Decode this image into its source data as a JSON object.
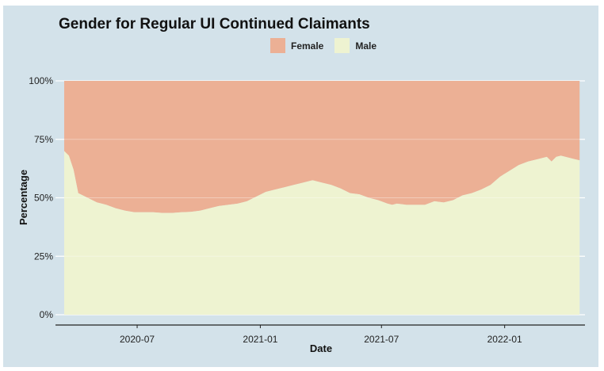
{
  "chart_data": {
    "type": "area",
    "stacked": true,
    "title": "Gender for Regular UI Continued Claimants",
    "xlabel": "Date",
    "ylabel": "Percentage",
    "x_tick_labels": [
      "2020-07",
      "2021-01",
      "2021-07",
      "2022-01"
    ],
    "y_tick_labels": [
      "0%",
      "25%",
      "50%",
      "75%",
      "100%"
    ],
    "ylim": [
      0,
      100
    ],
    "xlim": [
      "2020-03-01",
      "2022-05-01"
    ],
    "legend_position": "top",
    "grid": true,
    "x": [
      "2020-03-14",
      "2020-03-21",
      "2020-03-28",
      "2020-04-04",
      "2020-04-18",
      "2020-05-02",
      "2020-05-16",
      "2020-05-30",
      "2020-06-13",
      "2020-06-27",
      "2020-07-11",
      "2020-07-25",
      "2020-08-08",
      "2020-08-22",
      "2020-09-05",
      "2020-09-19",
      "2020-10-03",
      "2020-10-17",
      "2020-10-31",
      "2020-11-14",
      "2020-11-28",
      "2020-12-12",
      "2020-12-26",
      "2021-01-09",
      "2021-01-23",
      "2021-02-06",
      "2021-02-20",
      "2021-03-06",
      "2021-03-20",
      "2021-03-27",
      "2021-04-03",
      "2021-04-17",
      "2021-05-01",
      "2021-05-15",
      "2021-05-29",
      "2021-06-12",
      "2021-06-26",
      "2021-07-10",
      "2021-07-17",
      "2021-07-24",
      "2021-08-07",
      "2021-08-21",
      "2021-09-04",
      "2021-09-18",
      "2021-10-02",
      "2021-10-16",
      "2021-10-30",
      "2021-11-13",
      "2021-11-27",
      "2021-12-11",
      "2021-12-25",
      "2022-01-08",
      "2022-01-22",
      "2022-02-05",
      "2022-02-19",
      "2022-03-05",
      "2022-03-12",
      "2022-03-19",
      "2022-03-26",
      "2022-04-02",
      "2022-04-16",
      "2022-04-23"
    ],
    "series": [
      {
        "name": "Male",
        "color": "#eef3d1",
        "values": [
          70,
          68,
          62,
          52,
          50,
          48,
          47,
          45.5,
          44.5,
          43.8,
          43.8,
          43.8,
          43.5,
          43.5,
          43.8,
          44,
          44.5,
          45.5,
          46.5,
          47,
          47.5,
          48.5,
          50.5,
          52.5,
          53.5,
          54.5,
          55.5,
          56.5,
          57.5,
          57,
          56.5,
          55.5,
          54,
          52,
          51.5,
          50,
          49,
          47.5,
          47,
          47.5,
          47,
          47,
          47,
          48.5,
          48,
          49,
          51,
          52,
          53.5,
          55.5,
          59,
          61.5,
          64,
          65.5,
          66.5,
          67.5,
          65.5,
          67.5,
          68,
          67.5,
          66.5,
          66
        ]
      },
      {
        "name": "Female",
        "color": "#ecb095",
        "values": [
          30,
          32,
          38,
          48,
          50,
          52,
          53,
          54.5,
          55.5,
          56.2,
          56.2,
          56.2,
          56.5,
          56.5,
          56.2,
          56,
          55.5,
          54.5,
          53.5,
          53,
          52.5,
          51.5,
          49.5,
          47.5,
          46.5,
          45.5,
          44.5,
          43.5,
          42.5,
          43,
          43.5,
          44.5,
          46,
          48,
          48.5,
          50,
          51,
          52.5,
          53,
          52.5,
          53,
          53,
          53,
          51.5,
          52,
          51,
          49,
          48,
          46.5,
          44.5,
          41,
          38.5,
          36,
          34.5,
          33.5,
          32.5,
          34.5,
          32.5,
          32,
          32.5,
          33.5,
          34
        ]
      }
    ]
  },
  "colors": {
    "background": "#d3e2ea",
    "grid": "#ffffff",
    "axis": "#222222"
  }
}
